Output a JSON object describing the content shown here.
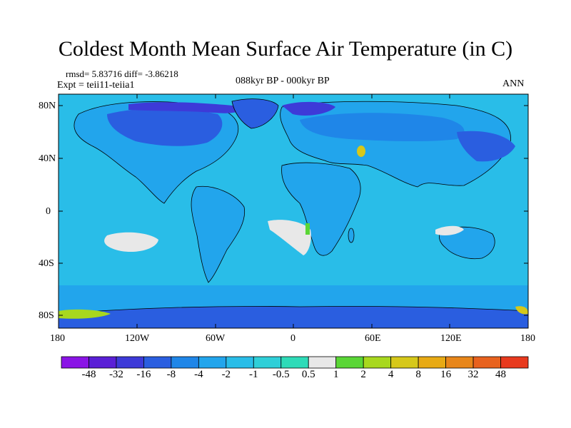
{
  "title": "Coldest Month Mean Surface Air Temperature (in C)",
  "stats": "rmsd= 5.83716 diff= -3.86218",
  "expt": "Expt = teii11-teiia1",
  "period": "088kyr BP - 000kyr BP",
  "season": "ANN",
  "lat_ticks": [
    "80N",
    "40N",
    "0",
    "40S",
    "80S"
  ],
  "lon_ticks": [
    "180",
    "120W",
    "60W",
    "0",
    "60E",
    "120E",
    "180"
  ],
  "colorbar": {
    "labels": [
      "-48",
      "-32",
      "-16",
      "-8",
      "-4",
      "-2",
      "-1",
      "-0.5",
      "0.5",
      "1",
      "2",
      "4",
      "8",
      "16",
      "32",
      "48"
    ],
    "colors": [
      "#8a14e6",
      "#5a1fd6",
      "#3d3ad8",
      "#2a5ee0",
      "#1f86e8",
      "#22a5ec",
      "#29bde8",
      "#2fcfd8",
      "#2edbb8",
      "#e8e8e8",
      "#5ad636",
      "#a8d81e",
      "#d6c81a",
      "#e8aa14",
      "#e8861a",
      "#e8621e",
      "#e83a1e"
    ]
  },
  "map": {
    "ocean_color": "#29bde8",
    "land_color": "#22a5ec",
    "anomaly_colors": {
      "strong_cold": "#3d3ad8",
      "cold": "#2a5ee0",
      "mild_cold": "#1f86e8",
      "near_zero": "#e8e8e8",
      "warm": "#5ad636",
      "hot": "#d6c81a"
    }
  }
}
